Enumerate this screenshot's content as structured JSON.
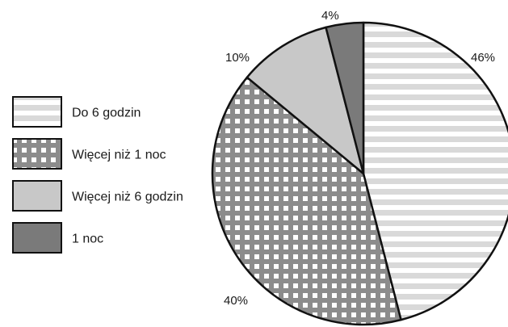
{
  "chart_data": {
    "type": "pie",
    "title": "",
    "legend_position": "left",
    "slices": [
      {
        "label": "Do 6 godzin",
        "value": 46,
        "value_label": "46%",
        "fill": "#ffffff",
        "pattern": "stripes",
        "pattern_color": "#d9d9d9"
      },
      {
        "label": "Więcej niż 1 noc",
        "value": 40,
        "value_label": "40%",
        "fill": "#8c8c8c",
        "pattern": "checker",
        "pattern_color": "#ffffff"
      },
      {
        "label": "Więcej niż 6 godzin",
        "value": 10,
        "value_label": "10%",
        "fill": "#c8c8c8",
        "pattern": "solid"
      },
      {
        "label": "1 noc",
        "value": 4,
        "value_label": "4%",
        "fill": "#7a7a7a",
        "pattern": "solid"
      }
    ],
    "legend_order": [
      0,
      1,
      2,
      3
    ]
  }
}
